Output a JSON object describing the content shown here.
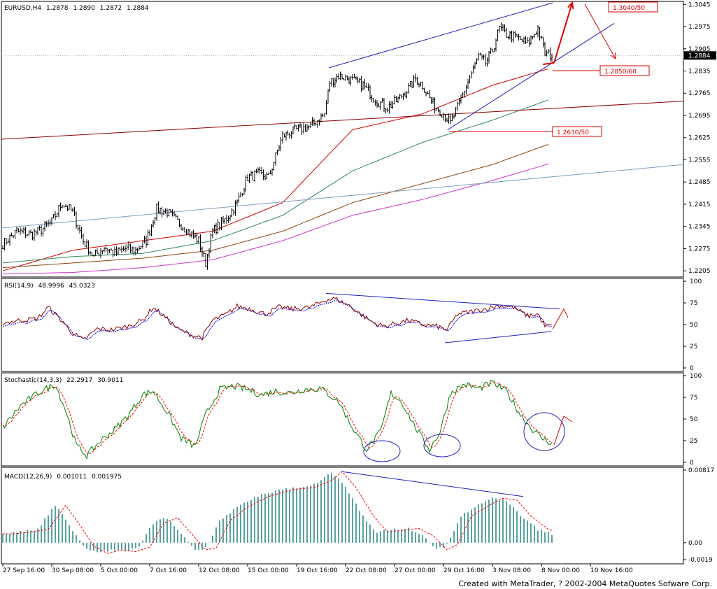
{
  "chart_data": {
    "type": "candlestick",
    "instrument": "EURUSD,H4",
    "main": {
      "header": {
        "symbol": "EURUSD,H4",
        "open": "1.2878",
        "high": "1.2890",
        "low": "1.2872",
        "close": "1.2884"
      },
      "y_ticks": [
        "1.3045",
        "1.2975",
        "1.2905",
        "1.2835",
        "1.2765",
        "1.2695",
        "1.2625",
        "1.2555",
        "1.2485",
        "1.2415",
        "1.2345",
        "1.2275",
        "1.2205"
      ],
      "ylim": [
        1.219,
        1.305
      ],
      "current_price": "1.2884",
      "price_levels": [
        {
          "label": "1.3040/50",
          "value": 1.3045
        },
        {
          "label": "1.2850/60",
          "value": 1.2855
        },
        {
          "label": "1.2630/50",
          "value": 1.264
        }
      ],
      "anchors": [
        [
          0,
          1.229
        ],
        [
          8,
          1.233
        ],
        [
          16,
          1.232
        ],
        [
          22,
          1.2335
        ],
        [
          28,
          1.236
        ],
        [
          34,
          1.242
        ],
        [
          40,
          1.239
        ],
        [
          46,
          1.23
        ],
        [
          52,
          1.225
        ],
        [
          58,
          1.228
        ],
        [
          64,
          1.226
        ],
        [
          70,
          1.2275
        ],
        [
          76,
          1.227
        ],
        [
          82,
          1.23
        ],
        [
          88,
          1.24
        ],
        [
          94,
          1.239
        ],
        [
          100,
          1.236
        ],
        [
          106,
          1.233
        ],
        [
          112,
          1.23
        ],
        [
          116,
          1.223
        ],
        [
          120,
          1.233
        ],
        [
          128,
          1.237
        ],
        [
          134,
          1.242
        ],
        [
          140,
          1.25
        ],
        [
          146,
          1.251
        ],
        [
          152,
          1.25
        ],
        [
          160,
          1.263
        ],
        [
          168,
          1.265
        ],
        [
          176,
          1.266
        ],
        [
          184,
          1.27
        ],
        [
          187,
          1.28
        ],
        [
          192,
          1.282
        ],
        [
          198,
          1.281
        ],
        [
          206,
          1.279
        ],
        [
          214,
          1.274
        ],
        [
          220,
          1.272
        ],
        [
          226,
          1.2745
        ],
        [
          232,
          1.278
        ],
        [
          236,
          1.281
        ],
        [
          240,
          1.279
        ],
        [
          246,
          1.273
        ],
        [
          252,
          1.27
        ],
        [
          256,
          1.267
        ],
        [
          260,
          1.272
        ],
        [
          266,
          1.28
        ],
        [
          272,
          1.288
        ],
        [
          276,
          1.286
        ],
        [
          280,
          1.29
        ],
        [
          284,
          1.297
        ],
        [
          288,
          1.295
        ],
        [
          294,
          1.294
        ],
        [
          300,
          1.292
        ],
        [
          306,
          1.297
        ],
        [
          310,
          1.289
        ],
        [
          314,
          1.2884
        ]
      ],
      "moving_averages": [
        {
          "color": "#d40000",
          "anchors": [
            [
              0,
              1.2205
            ],
            [
              40,
              1.227
            ],
            [
              80,
              1.23
            ],
            [
              120,
              1.233
            ],
            [
              160,
              1.242
            ],
            [
              200,
              1.265
            ],
            [
              240,
              1.27
            ],
            [
              280,
              1.279
            ],
            [
              320,
              1.2855
            ]
          ]
        },
        {
          "color": "#2e8b57",
          "anchors": [
            [
              0,
              1.223
            ],
            [
              40,
              1.225
            ],
            [
              80,
              1.226
            ],
            [
              120,
              1.23
            ],
            [
              160,
              1.238
            ],
            [
              200,
              1.252
            ],
            [
              240,
              1.261
            ],
            [
              280,
              1.268
            ],
            [
              320,
              1.276
            ]
          ]
        },
        {
          "color": "#8b4513",
          "anchors": [
            [
              0,
              1.2215
            ],
            [
              40,
              1.223
            ],
            [
              80,
              1.2245
            ],
            [
              120,
              1.227
            ],
            [
              160,
              1.233
            ],
            [
              200,
              1.242
            ],
            [
              240,
              1.248
            ],
            [
              280,
              1.254
            ],
            [
              320,
              1.262
            ]
          ]
        },
        {
          "color": "#cc33cc",
          "anchors": [
            [
              0,
              1.2195
            ],
            [
              40,
              1.22
            ],
            [
              80,
              1.2215
            ],
            [
              120,
              1.224
            ],
            [
              160,
              1.23
            ],
            [
              200,
              1.238
            ],
            [
              240,
              1.243
            ],
            [
              280,
              1.249
            ],
            [
              320,
              1.2555
            ]
          ]
        }
      ]
    },
    "rsi": {
      "header": {
        "name": "RSI(14,9)",
        "v1": "48.9996",
        "v2": "45.0323"
      },
      "y_ticks": [
        "100",
        "75",
        "50",
        "25",
        "0"
      ],
      "ylim": [
        0,
        100
      ],
      "anchors": [
        [
          0,
          52
        ],
        [
          10,
          55
        ],
        [
          20,
          57
        ],
        [
          26,
          70
        ],
        [
          32,
          58
        ],
        [
          40,
          40
        ],
        [
          46,
          32
        ],
        [
          54,
          45
        ],
        [
          62,
          44
        ],
        [
          70,
          47
        ],
        [
          80,
          55
        ],
        [
          86,
          70
        ],
        [
          92,
          60
        ],
        [
          100,
          45
        ],
        [
          108,
          38
        ],
        [
          114,
          35
        ],
        [
          120,
          55
        ],
        [
          128,
          62
        ],
        [
          134,
          71
        ],
        [
          142,
          68
        ],
        [
          150,
          62
        ],
        [
          158,
          70
        ],
        [
          166,
          68
        ],
        [
          176,
          70
        ],
        [
          184,
          78
        ],
        [
          190,
          80
        ],
        [
          198,
          72
        ],
        [
          206,
          60
        ],
        [
          212,
          52
        ],
        [
          218,
          48
        ],
        [
          226,
          52
        ],
        [
          232,
          55
        ],
        [
          240,
          50
        ],
        [
          248,
          48
        ],
        [
          254,
          44
        ],
        [
          260,
          62
        ],
        [
          268,
          65
        ],
        [
          276,
          68
        ],
        [
          284,
          72
        ],
        [
          292,
          70
        ],
        [
          300,
          60
        ],
        [
          306,
          62
        ],
        [
          310,
          48
        ],
        [
          314,
          49
        ]
      ]
    },
    "stochastic": {
      "header": {
        "name": "Stochastic(14,3,3)",
        "v1": "22.2917",
        "v2": "30.9011"
      },
      "y_ticks": [
        "100",
        "75",
        "50",
        "25",
        "0"
      ],
      "ylim": [
        0,
        100
      ],
      "anchors": [
        [
          0,
          40
        ],
        [
          10,
          65
        ],
        [
          20,
          80
        ],
        [
          30,
          90
        ],
        [
          36,
          60
        ],
        [
          42,
          20
        ],
        [
          48,
          8
        ],
        [
          56,
          25
        ],
        [
          64,
          38
        ],
        [
          72,
          55
        ],
        [
          80,
          78
        ],
        [
          86,
          82
        ],
        [
          94,
          58
        ],
        [
          102,
          28
        ],
        [
          110,
          18
        ],
        [
          116,
          55
        ],
        [
          124,
          84
        ],
        [
          132,
          88
        ],
        [
          140,
          84
        ],
        [
          148,
          78
        ],
        [
          156,
          82
        ],
        [
          164,
          80
        ],
        [
          172,
          84
        ],
        [
          182,
          85
        ],
        [
          192,
          70
        ],
        [
          200,
          40
        ],
        [
          208,
          15
        ],
        [
          216,
          35
        ],
        [
          222,
          80
        ],
        [
          228,
          70
        ],
        [
          236,
          40
        ],
        [
          244,
          15
        ],
        [
          250,
          35
        ],
        [
          256,
          80
        ],
        [
          264,
          90
        ],
        [
          272,
          85
        ],
        [
          280,
          92
        ],
        [
          288,
          82
        ],
        [
          296,
          55
        ],
        [
          302,
          40
        ],
        [
          308,
          28
        ],
        [
          314,
          22
        ]
      ]
    },
    "macd": {
      "header": {
        "name": "MACD(12,26,9)",
        "v1": "0.001011",
        "v2": "0.001975"
      },
      "y_ticks": [
        "0.00817",
        "0.00",
        "-0.0019"
      ],
      "ylim": [
        -0.0019,
        0.00817
      ],
      "anchors": [
        [
          0,
          0.001
        ],
        [
          10,
          0.0012
        ],
        [
          20,
          0.0015
        ],
        [
          30,
          0.0042
        ],
        [
          38,
          0.002
        ],
        [
          46,
          -0.0004
        ],
        [
          54,
          -0.0012
        ],
        [
          62,
          -0.0008
        ],
        [
          70,
          -0.001
        ],
        [
          78,
          -0.0005
        ],
        [
          86,
          0.0022
        ],
        [
          94,
          0.0028
        ],
        [
          102,
          0.001
        ],
        [
          110,
          -0.0008
        ],
        [
          116,
          -0.0006
        ],
        [
          124,
          0.0025
        ],
        [
          134,
          0.004
        ],
        [
          146,
          0.0052
        ],
        [
          160,
          0.006
        ],
        [
          172,
          0.0062
        ],
        [
          182,
          0.007
        ],
        [
          188,
          0.008
        ],
        [
          196,
          0.0062
        ],
        [
          206,
          0.003
        ],
        [
          214,
          0.0012
        ],
        [
          222,
          0.0014
        ],
        [
          232,
          0.0016
        ],
        [
          240,
          0.0008
        ],
        [
          248,
          -0.0008
        ],
        [
          254,
          -0.0002
        ],
        [
          262,
          0.003
        ],
        [
          272,
          0.0042
        ],
        [
          280,
          0.005
        ],
        [
          288,
          0.0048
        ],
        [
          296,
          0.003
        ],
        [
          306,
          0.0015
        ],
        [
          314,
          0.001
        ]
      ],
      "signal_lag": 6
    },
    "x_tick_labels": [
      "27 Sep 16:00",
      "30 Sep 08:00",
      "5 Oct 00:00",
      "7 Oct 16:00",
      "12 Oct 08:00",
      "15 Oct 00:00",
      "19 Oct 16:00",
      "22 Oct 08:00",
      "27 Oct 00:00",
      "29 Oct 16:00",
      "3 Nov 08:00",
      "8 Nov 00:00",
      "10 Nov 16:00"
    ],
    "x_tick_bars": [
      0,
      28,
      56,
      84,
      112,
      140,
      168,
      196,
      224,
      252,
      280,
      308,
      336
    ],
    "colors": {
      "grid_bg": "#ffffff",
      "candle": "#000000",
      "trend_blue": "#1f1fbf",
      "trend_red": "#8b0000",
      "trend_steel": "#7f9fbf",
      "arrow_red": "#dd0000",
      "rsi_line": "#8b0000",
      "rsi_signal": "#0000ff",
      "stoch_main": "#008000",
      "stoch_signal": "#ff0000",
      "macd_hist": "#2e8b8b",
      "macd_signal": "#ff0000"
    }
  },
  "footer": {
    "text": "Created with MetaTrader, ? 2002-2004 MetaQuotes Sofware Corp."
  }
}
